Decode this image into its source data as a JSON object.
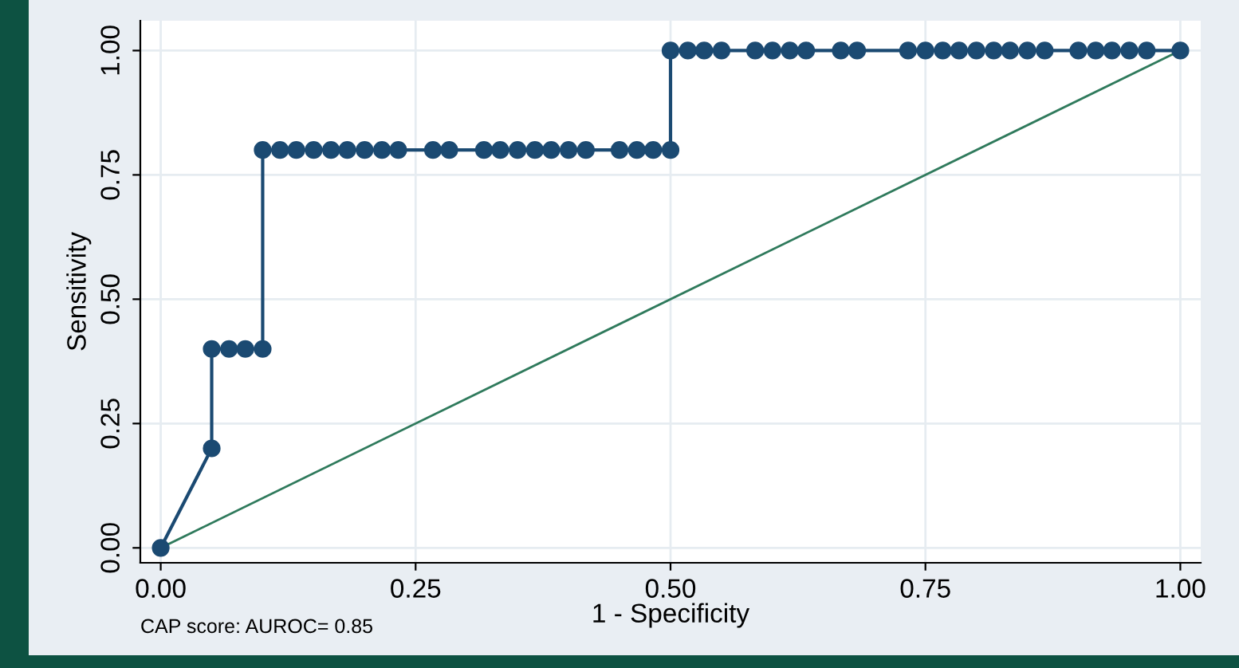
{
  "chart_data": {
    "type": "line",
    "xlabel": "1 - Specificity",
    "ylabel": "Sensitivity",
    "annotations": [
      "CAP score: AUROC= 0.85"
    ],
    "series": [
      {
        "color": "#1b4a72",
        "marker": "circle",
        "x": [
          0,
          0.05,
          0.05,
          0.067,
          0.083,
          0.1,
          0.1,
          0.117,
          0.133,
          0.15,
          0.167,
          0.183,
          0.2,
          0.217,
          0.233,
          0.267,
          0.283,
          0.317,
          0.333,
          0.35,
          0.367,
          0.383,
          0.4,
          0.417,
          0.45,
          0.467,
          0.483,
          0.5,
          0.5,
          0.517,
          0.533,
          0.55,
          0.583,
          0.6,
          0.617,
          0.633,
          0.667,
          0.683,
          0.733,
          0.75,
          0.767,
          0.783,
          0.8,
          0.817,
          0.833,
          0.85,
          0.867,
          0.9,
          0.917,
          0.933,
          0.95,
          0.967,
          1
        ],
        "values": [
          0,
          0.2,
          0.4,
          0.4,
          0.4,
          0.4,
          0.8,
          0.8,
          0.8,
          0.8,
          0.8,
          0.8,
          0.8,
          0.8,
          0.8,
          0.8,
          0.8,
          0.8,
          0.8,
          0.8,
          0.8,
          0.8,
          0.8,
          0.8,
          0.8,
          0.8,
          0.8,
          0.8,
          1,
          1,
          1,
          1,
          1,
          1,
          1,
          1,
          1,
          1,
          1,
          1,
          1,
          1,
          1,
          1,
          1,
          1,
          1,
          1,
          1,
          1,
          1,
          1,
          1
        ]
      },
      {
        "color": "#2f7a5c",
        "marker": "none",
        "x": [
          0,
          1
        ],
        "values": [
          0,
          1
        ]
      }
    ],
    "xlim": [
      -0.02,
      1.02
    ],
    "ylim": [
      -0.03,
      1.06
    ],
    "xticks": [
      {
        "value": 0,
        "label": "0.00"
      },
      {
        "value": 0.25,
        "label": "0.25"
      },
      {
        "value": 0.5,
        "label": "0.50"
      },
      {
        "value": 0.75,
        "label": "0.75"
      },
      {
        "value": 1,
        "label": "1.00"
      }
    ],
    "yticks": [
      {
        "value": 0,
        "label": "0.00"
      },
      {
        "value": 0.25,
        "label": "0.25"
      },
      {
        "value": 0.5,
        "label": "0.50"
      },
      {
        "value": 0.75,
        "label": "0.75"
      },
      {
        "value": 1,
        "label": "1.00"
      }
    ],
    "grid": true
  }
}
